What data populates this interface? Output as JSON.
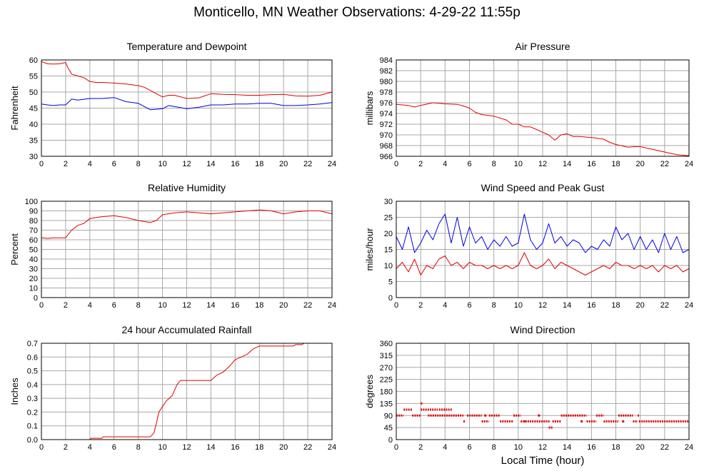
{
  "page": {
    "title": "Monticello, MN Weather Observations: 4-29-22 11:55p",
    "x_caption": "Local Time (hour)"
  },
  "chart_data": [
    {
      "id": "temperature",
      "type": "line",
      "title": "Temperature and Dewpoint",
      "xlabel": "",
      "ylabel": "Fahrenheit",
      "xlim": [
        0,
        24
      ],
      "ylim": [
        30,
        60
      ],
      "xticks": [
        0,
        2,
        4,
        6,
        8,
        10,
        12,
        14,
        16,
        18,
        20,
        22,
        24
      ],
      "yticks": [
        30,
        35,
        40,
        45,
        50,
        55,
        60
      ],
      "grid": true,
      "series": [
        {
          "color": "#e00000",
          "x": [
            0,
            0.5,
            1,
            1.5,
            2,
            2.2,
            2.5,
            3,
            3.5,
            4,
            4.5,
            5,
            6,
            7,
            8,
            8.5,
            9,
            9.5,
            10,
            10.5,
            11,
            12,
            13,
            14,
            15,
            16,
            17,
            18,
            19,
            20,
            21,
            22,
            23,
            24
          ],
          "y": [
            59.5,
            58.8,
            58.7,
            58.8,
            59.2,
            57.5,
            55.6,
            55.0,
            54.5,
            53.3,
            53.0,
            53.0,
            52.8,
            52.5,
            52.0,
            51.5,
            50.5,
            49.5,
            48.5,
            49.0,
            49.0,
            48.0,
            48.2,
            49.5,
            49.3,
            49.2,
            49.0,
            49.0,
            49.2,
            49.3,
            48.8,
            48.7,
            49.0,
            50.0
          ]
        },
        {
          "color": "#0000e0",
          "x": [
            0,
            0.5,
            1,
            1.5,
            2,
            2.5,
            3,
            4,
            5,
            6,
            7,
            8,
            9,
            10,
            10.5,
            11,
            12,
            13,
            14,
            15,
            16,
            17,
            18,
            19,
            20,
            21,
            22,
            23,
            24
          ],
          "y": [
            46.3,
            46.0,
            45.8,
            46.0,
            46.0,
            47.8,
            47.5,
            48.0,
            48.0,
            48.3,
            47.0,
            46.5,
            44.5,
            44.8,
            45.8,
            45.5,
            44.8,
            45.3,
            46.0,
            46.0,
            46.3,
            46.3,
            46.5,
            46.5,
            45.8,
            45.8,
            46.0,
            46.3,
            46.7
          ]
        }
      ]
    },
    {
      "id": "pressure",
      "type": "line",
      "title": "Air Pressure",
      "xlabel": "",
      "ylabel": "millibars",
      "xlim": [
        0,
        24
      ],
      "ylim": [
        966,
        984
      ],
      "xticks": [
        0,
        2,
        4,
        6,
        8,
        10,
        12,
        14,
        16,
        18,
        20,
        22,
        24
      ],
      "yticks": [
        966,
        968,
        970,
        972,
        974,
        976,
        978,
        980,
        982,
        984
      ],
      "grid": true,
      "series": [
        {
          "color": "#e00000",
          "x": [
            0,
            1,
            1.5,
            2,
            3,
            4,
            5,
            5.5,
            6,
            6.5,
            7,
            8,
            9,
            9.5,
            10,
            10.5,
            11,
            11.5,
            12,
            12.5,
            13,
            13.5,
            14,
            14.5,
            15,
            16,
            17,
            17.5,
            18,
            19,
            19.5,
            20,
            21,
            22,
            23,
            24
          ],
          "y": [
            975.7,
            975.5,
            975.2,
            975.5,
            976.0,
            975.8,
            975.7,
            975.4,
            975.0,
            974.2,
            973.8,
            973.5,
            972.8,
            972.0,
            972.0,
            971.5,
            971.5,
            971.0,
            970.5,
            970.0,
            969.0,
            970.0,
            970.2,
            969.7,
            969.7,
            969.5,
            969.2,
            968.6,
            968.2,
            967.7,
            967.8,
            967.8,
            967.3,
            966.8,
            966.3,
            966.1
          ]
        }
      ]
    },
    {
      "id": "humidity",
      "type": "line",
      "title": "Relative Humidity",
      "xlabel": "",
      "ylabel": "Percent",
      "xlim": [
        0,
        24
      ],
      "ylim": [
        0,
        100
      ],
      "xticks": [
        0,
        2,
        4,
        6,
        8,
        10,
        12,
        14,
        16,
        18,
        20,
        22,
        24
      ],
      "yticks": [
        0,
        10,
        20,
        30,
        40,
        50,
        60,
        70,
        80,
        90,
        100
      ],
      "grid": true,
      "series": [
        {
          "color": "#e00000",
          "x": [
            0,
            0.5,
            1,
            1.5,
            2,
            2.5,
            3,
            3.5,
            4,
            4.5,
            5,
            6,
            7,
            8,
            8.5,
            9,
            9.5,
            10,
            11,
            12,
            13,
            14,
            15,
            16,
            17,
            18,
            19,
            20,
            20.5,
            21,
            22,
            23,
            24
          ],
          "y": [
            62,
            61.5,
            62,
            62,
            62,
            70,
            75,
            77,
            82,
            83,
            84,
            85,
            83,
            80,
            79,
            78,
            80,
            86,
            88,
            89,
            88,
            87,
            88,
            89,
            90,
            91,
            90,
            87,
            88,
            89,
            90,
            90,
            87
          ]
        }
      ]
    },
    {
      "id": "wind-speed",
      "type": "line",
      "title": "Wind Speed and Peak Gust",
      "xlabel": "",
      "ylabel": "miles/hour",
      "xlim": [
        0,
        24
      ],
      "ylim": [
        0,
        30
      ],
      "xticks": [
        0,
        2,
        4,
        6,
        8,
        10,
        12,
        14,
        16,
        18,
        20,
        22,
        24
      ],
      "yticks": [
        0,
        5,
        10,
        15,
        20,
        25,
        30
      ],
      "grid": true,
      "series": [
        {
          "color": "#0000e0",
          "x": [
            0,
            0.5,
            1,
            1.5,
            2,
            2.5,
            3,
            3.5,
            4,
            4.5,
            5,
            5.5,
            6,
            6.5,
            7,
            7.5,
            8,
            8.5,
            9,
            9.5,
            10,
            10.5,
            11,
            11.5,
            12,
            12.5,
            13,
            13.5,
            14,
            14.5,
            15,
            15.5,
            16,
            16.5,
            17,
            17.5,
            18,
            18.5,
            19,
            19.5,
            20,
            20.5,
            21,
            21.5,
            22,
            22.5,
            23,
            23.5,
            24
          ],
          "y": [
            19,
            15,
            22,
            14,
            17,
            21,
            18,
            23,
            26,
            17,
            25,
            16,
            22,
            17,
            19,
            15,
            18,
            16,
            19,
            16,
            17,
            26,
            18,
            15,
            17,
            23,
            17,
            19,
            16,
            18,
            17,
            14,
            16,
            15,
            18,
            16,
            22,
            18,
            20,
            15,
            19,
            15,
            18,
            14,
            20,
            15,
            19,
            14,
            15
          ]
        },
        {
          "color": "#e00000",
          "x": [
            0,
            0.5,
            1,
            1.5,
            2,
            2.5,
            3,
            3.5,
            4,
            4.5,
            5,
            5.5,
            6,
            6.5,
            7,
            7.5,
            8,
            8.5,
            9,
            9.5,
            10,
            10.5,
            11,
            11.5,
            12,
            12.5,
            13,
            13.5,
            14,
            14.5,
            15,
            15.5,
            16,
            16.5,
            17,
            17.5,
            18,
            18.5,
            19,
            19.5,
            20,
            20.5,
            21,
            21.5,
            22,
            22.5,
            23,
            23.5,
            24
          ],
          "y": [
            9,
            11,
            8,
            12,
            7,
            10,
            9,
            12,
            13,
            10,
            11,
            9,
            11,
            10,
            10,
            9,
            10,
            9,
            10,
            9,
            10,
            14,
            10,
            9,
            10,
            12,
            9,
            11,
            10,
            9,
            8,
            7,
            8,
            9,
            10,
            9,
            11,
            10,
            10,
            9,
            10,
            9,
            10,
            8,
            10,
            9,
            10,
            8,
            9
          ]
        }
      ]
    },
    {
      "id": "rainfall",
      "type": "line",
      "title": "24 hour Accumulated Rainfall",
      "xlabel": "",
      "ylabel": "Inches",
      "xlim": [
        0,
        24
      ],
      "ylim": [
        0,
        0.7
      ],
      "xticks": [
        0,
        2,
        4,
        6,
        8,
        10,
        12,
        14,
        16,
        18,
        20,
        22,
        24
      ],
      "yticks": [
        0.0,
        0.1,
        0.2,
        0.3,
        0.4,
        0.5,
        0.6,
        0.7
      ],
      "ytick_labels": [
        "0.0",
        "0.1",
        "0.2",
        "0.3",
        "0.4",
        "0.5",
        "0.6",
        "0.7"
      ],
      "grid": true,
      "series": [
        {
          "color": "#e00000",
          "x": [
            0,
            4,
            4.1,
            5,
            5.1,
            9,
            9.3,
            9.5,
            9.7,
            10,
            10.3,
            10.8,
            11.2,
            11.5,
            12,
            13,
            14,
            14.5,
            15,
            15.5,
            16,
            16.5,
            17,
            17.5,
            18,
            19,
            20,
            20.8,
            21,
            21.5,
            21.7
          ],
          "y": [
            0,
            0,
            0.01,
            0.01,
            0.02,
            0.02,
            0.05,
            0.12,
            0.2,
            0.24,
            0.28,
            0.32,
            0.4,
            0.43,
            0.43,
            0.43,
            0.43,
            0.47,
            0.49,
            0.53,
            0.58,
            0.6,
            0.62,
            0.66,
            0.68,
            0.68,
            0.68,
            0.68,
            0.69,
            0.69,
            0.7
          ]
        }
      ]
    },
    {
      "id": "wind-direction",
      "type": "scatter",
      "title": "Wind Direction",
      "xlabel": "",
      "ylabel": "degrees",
      "xlim": [
        0,
        24
      ],
      "ylim": [
        0,
        360
      ],
      "xticks": [
        0,
        2,
        4,
        6,
        8,
        10,
        12,
        14,
        16,
        18,
        20,
        22,
        24
      ],
      "yticks": [
        0,
        45,
        90,
        135,
        180,
        225,
        270,
        315,
        360
      ],
      "grid": true,
      "series": [
        {
          "color": "#e00000",
          "segments": [
            {
              "x0": 0,
              "x1": 0.6,
              "y": 90
            },
            {
              "x0": 0.6,
              "x1": 1.3,
              "y": 112
            },
            {
              "x0": 1.3,
              "x1": 2.0,
              "y": 90
            },
            {
              "x0": 2.0,
              "x1": 2.2,
              "y": 135
            },
            {
              "x0": 2.0,
              "x1": 3.4,
              "y": 112
            },
            {
              "x0": 3.5,
              "x1": 4.6,
              "y": 112
            },
            {
              "x0": 2.6,
              "x1": 5.5,
              "y": 90
            },
            {
              "x0": 5.5,
              "x1": 5.7,
              "y": 68
            },
            {
              "x0": 5.8,
              "x1": 7.0,
              "y": 90
            },
            {
              "x0": 7.0,
              "x1": 7.6,
              "y": 68
            },
            {
              "x0": 7.6,
              "x1": 8.5,
              "y": 90
            },
            {
              "x0": 8.5,
              "x1": 9.6,
              "y": 68
            },
            {
              "x0": 9.6,
              "x1": 10.2,
              "y": 90
            },
            {
              "x0": 10.2,
              "x1": 12.6,
              "y": 68
            },
            {
              "x0": 12.5,
              "x1": 12.8,
              "y": 45
            },
            {
              "x0": 12.8,
              "x1": 13.5,
              "y": 68
            },
            {
              "x0": 13.5,
              "x1": 15.6,
              "y": 90
            },
            {
              "x0": 15.6,
              "x1": 16.4,
              "y": 68
            },
            {
              "x0": 16.4,
              "x1": 17.0,
              "y": 90
            },
            {
              "x0": 17.0,
              "x1": 18.2,
              "y": 68
            },
            {
              "x0": 18.2,
              "x1": 19.4,
              "y": 90
            },
            {
              "x0": 19.4,
              "x1": 19.8,
              "y": 68
            },
            {
              "x0": 19.8,
              "x1": 19.9,
              "y": 90
            },
            {
              "x0": 19.9,
              "x1": 24,
              "y": 68
            }
          ],
          "points": [
            {
              "x": 11.7,
              "y": 90
            },
            {
              "x": 10.6,
              "y": 68
            },
            {
              "x": 7.3,
              "y": 90
            },
            {
              "x": 15.2,
              "y": 68
            },
            {
              "x": 18.6,
              "y": 68
            }
          ]
        }
      ]
    }
  ]
}
